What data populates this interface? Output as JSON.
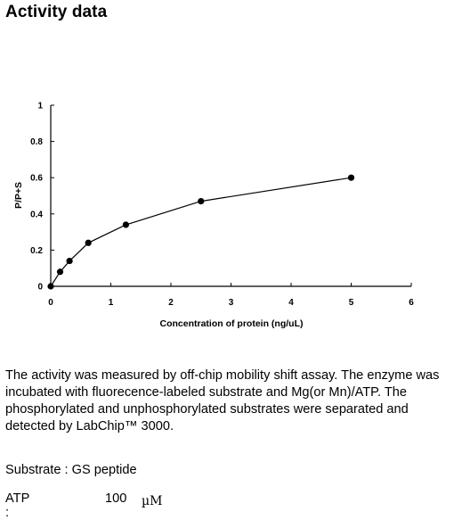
{
  "section_title": "Activity data",
  "chart_data": {
    "type": "line",
    "xlabel": "Concentration of protein (ng/uL)",
    "ylabel": "P/P+S",
    "xlim": [
      0,
      6
    ],
    "ylim": [
      0,
      1
    ],
    "x_ticks": [
      "0",
      "1",
      "2",
      "3",
      "4",
      "5",
      "6"
    ],
    "y_ticks": [
      "0",
      "0.2",
      "0.4",
      "0.6",
      "0.8",
      "1"
    ],
    "series": [
      {
        "x": [
          0,
          0.156,
          0.3125,
          0.625,
          1.25,
          2.5,
          5
        ],
        "y": [
          0,
          0.08,
          0.14,
          0.24,
          0.34,
          0.47,
          0.6
        ]
      }
    ],
    "line_color": "#000000",
    "marker_color": "#000000",
    "grid": false
  },
  "description": "The activity was measured by off-chip mobility shift assay. The enzyme was incubated with fluorecence-labeled  substrate and Mg(or Mn)/ATP. The phosphorylated and unphosphorylated substrates were separated and detected by LabChip™ 3000.",
  "substrate_line": "Substrate : GS peptide",
  "atp": {
    "label": "ATP :",
    "value": "100",
    "unit": "µM"
  }
}
